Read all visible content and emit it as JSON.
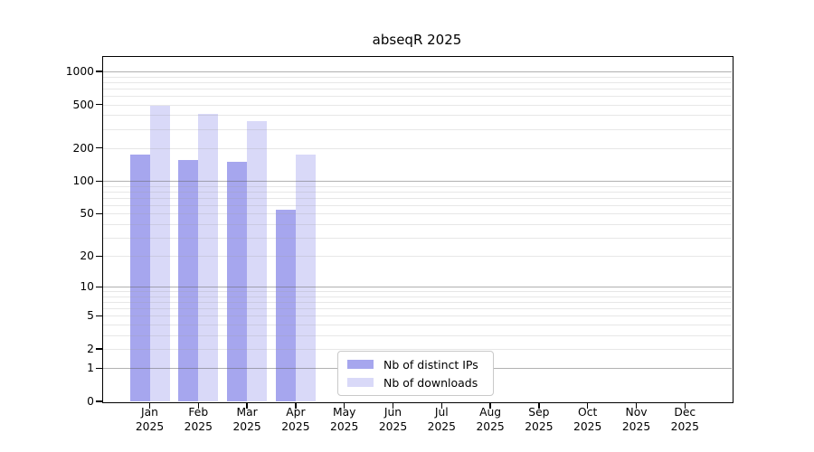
{
  "chart_data": {
    "type": "bar",
    "title": "abseqR 2025",
    "categories": [
      "Jan",
      "Feb",
      "Mar",
      "Apr",
      "May",
      "Jun",
      "Jul",
      "Aug",
      "Sep",
      "Oct",
      "Nov",
      "Dec"
    ],
    "x_year_label": "2025",
    "series": [
      {
        "name": "Nb of distinct IPs",
        "color": "#a6a6ee",
        "values": [
          174,
          156,
          150,
          54,
          null,
          null,
          null,
          null,
          null,
          null,
          null,
          null
        ]
      },
      {
        "name": "Nb of downloads",
        "color": "#d9d9f8",
        "values": [
          487,
          413,
          352,
          175,
          null,
          null,
          null,
          null,
          null,
          null,
          null,
          null
        ]
      }
    ],
    "y_axis": {
      "scale": "log10(value+1)",
      "tick_labels": [
        0,
        1,
        2,
        5,
        10,
        20,
        50,
        100,
        200,
        500,
        1000
      ],
      "major_gridlines": [
        1,
        10,
        100,
        1000
      ],
      "minor_gridline_decades": [
        1,
        10,
        100
      ],
      "max": 1000
    },
    "legend": {
      "entries": [
        "Nb of distinct IPs",
        "Nb of downloads"
      ]
    },
    "colors": {
      "major_grid": "#b1b1b1",
      "minor_grid": "#e7e7e7",
      "frame": "#000000",
      "text": "#000000"
    }
  }
}
